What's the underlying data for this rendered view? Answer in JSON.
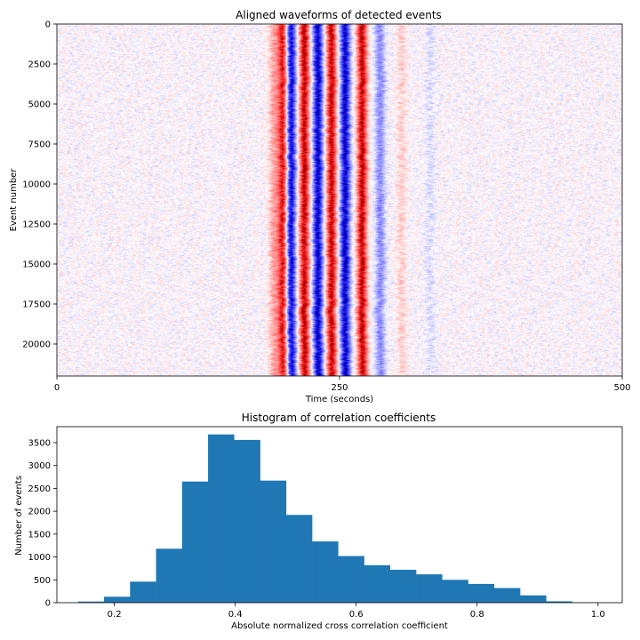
{
  "chart_data": [
    {
      "type": "heatmap",
      "title": "Aligned waveforms of detected events",
      "xlabel": "Time (seconds)",
      "ylabel": "Event number",
      "xlim": [
        0,
        500
      ],
      "ylim": [
        22000,
        0
      ],
      "xticks": [
        0,
        250,
        500
      ],
      "yticks": [
        0,
        2500,
        5000,
        7500,
        10000,
        12500,
        15000,
        17500,
        20000
      ],
      "colormap": "bwr",
      "colors": {
        "negative": "#0000ff",
        "zero": "#ffffff",
        "positive": "#ff0000"
      },
      "waveform": {
        "onset_seconds": 190,
        "bands": [
          {
            "time": 192,
            "polarity": "positive",
            "amplitude": 0.35
          },
          {
            "time": 200,
            "polarity": "positive",
            "amplitude": 0.95
          },
          {
            "time": 207,
            "polarity": "negative",
            "amplitude": 1.0
          },
          {
            "time": 219,
            "polarity": "positive",
            "amplitude": 1.0
          },
          {
            "time": 231,
            "polarity": "negative",
            "amplitude": 1.0
          },
          {
            "time": 243,
            "polarity": "positive",
            "amplitude": 1.0
          },
          {
            "time": 255,
            "polarity": "negative",
            "amplitude": 1.0
          },
          {
            "time": 270,
            "polarity": "positive",
            "amplitude": 1.0
          },
          {
            "time": 286,
            "polarity": "negative",
            "amplitude": 0.45
          },
          {
            "time": 305,
            "polarity": "positive",
            "amplitude": 0.18
          },
          {
            "time": 330,
            "polarity": "negative",
            "amplitude": 0.12
          }
        ]
      }
    },
    {
      "type": "bar",
      "title": "Histogram of correlation coefficients",
      "xlabel": "Absolute normalized cross correlation coefficient",
      "ylabel": "Number of events",
      "xlim": [
        0.105,
        1.04
      ],
      "ylim": [
        0,
        3850
      ],
      "xticks": [
        0.2,
        0.4,
        0.6,
        0.8,
        1.0
      ],
      "yticks": [
        0,
        500,
        1000,
        1500,
        2000,
        2500,
        3000,
        3500
      ],
      "bar_color": "#1f77b4",
      "bin_edges": [
        0.14,
        0.183,
        0.226,
        0.269,
        0.312,
        0.355,
        0.398,
        0.441,
        0.484,
        0.527,
        0.57,
        0.613,
        0.656,
        0.699,
        0.742,
        0.785,
        0.828,
        0.871,
        0.914,
        0.957,
        1.0
      ],
      "values": [
        25,
        130,
        460,
        1180,
        2650,
        3680,
        3560,
        2670,
        1920,
        1340,
        1020,
        820,
        720,
        620,
        500,
        410,
        320,
        160,
        30,
        5
      ]
    }
  ]
}
